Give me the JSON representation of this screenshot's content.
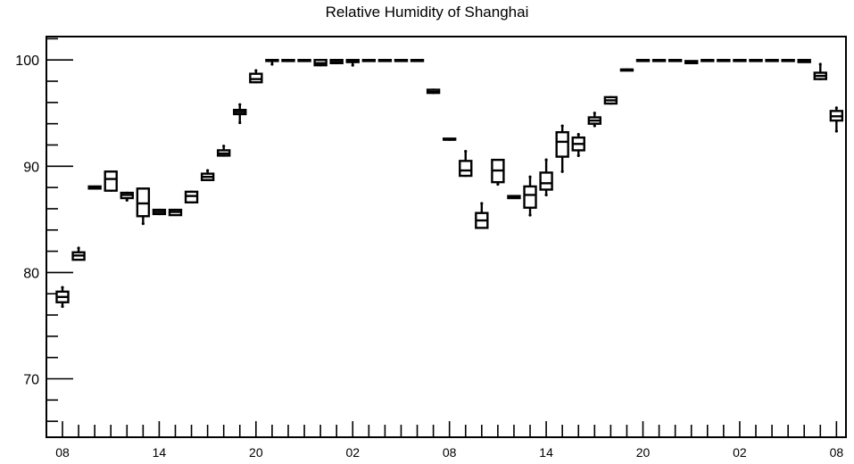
{
  "chart_data": {
    "type": "box",
    "title": "Relative Humidity of Shanghai",
    "xlabel": "",
    "ylabel": "",
    "ylim": [
      64.5,
      102.2
    ],
    "y_ticks": [
      70,
      80,
      90,
      100
    ],
    "x_tick_labels": [
      "08",
      "14",
      "20",
      "02",
      "08",
      "14",
      "20",
      "02",
      "08"
    ],
    "hours": 49,
    "grid": false,
    "legend": "none",
    "boxes": [
      {
        "hour": 0,
        "min": 76.8,
        "q1": 77.2,
        "median": 77.7,
        "q3": 78.2,
        "max": 78.6
      },
      {
        "hour": 1,
        "min": 81.2,
        "q1": 81.2,
        "median": 81.6,
        "q3": 81.9,
        "max": 82.3
      },
      {
        "hour": 2,
        "min": 87.9,
        "q1": 87.9,
        "median": 88.0,
        "q3": 88.1,
        "max": 88.1
      },
      {
        "hour": 3,
        "min": 87.6,
        "q1": 87.7,
        "median": 88.8,
        "q3": 89.5,
        "max": 89.5
      },
      {
        "hour": 4,
        "min": 86.8,
        "q1": 87.0,
        "median": 87.3,
        "q3": 87.5,
        "max": 87.6
      },
      {
        "hour": 5,
        "min": 84.6,
        "q1": 85.3,
        "median": 86.5,
        "q3": 87.9,
        "max": 87.9
      },
      {
        "hour": 6,
        "min": 85.4,
        "q1": 85.5,
        "median": 85.7,
        "q3": 85.9,
        "max": 86.0
      },
      {
        "hour": 7,
        "min": 85.4,
        "q1": 85.4,
        "median": 85.7,
        "q3": 85.9,
        "max": 86.0
      },
      {
        "hour": 8,
        "min": 86.5,
        "q1": 86.6,
        "median": 87.2,
        "q3": 87.6,
        "max": 87.7
      },
      {
        "hour": 9,
        "min": 88.6,
        "q1": 88.7,
        "median": 89.0,
        "q3": 89.3,
        "max": 89.6
      },
      {
        "hour": 10,
        "min": 90.9,
        "q1": 91.0,
        "median": 91.2,
        "q3": 91.5,
        "max": 91.9
      },
      {
        "hour": 11,
        "min": 94.1,
        "q1": 94.9,
        "median": 95.1,
        "q3": 95.3,
        "max": 95.8
      },
      {
        "hour": 12,
        "min": 97.8,
        "q1": 97.9,
        "median": 98.2,
        "q3": 98.7,
        "max": 99.0
      },
      {
        "hour": 13,
        "min": 99.6,
        "q1": 99.9,
        "median": 100.0,
        "q3": 100.0,
        "max": 100.0
      },
      {
        "hour": 14,
        "min": 100.0,
        "q1": 100.0,
        "median": 100.0,
        "q3": 100.0,
        "max": 100.0
      },
      {
        "hour": 15,
        "min": 100.0,
        "q1": 100.0,
        "median": 100.0,
        "q3": 100.0,
        "max": 100.0
      },
      {
        "hour": 16,
        "min": 99.4,
        "q1": 99.5,
        "median": 99.7,
        "q3": 100.0,
        "max": 100.0
      },
      {
        "hour": 17,
        "min": 99.6,
        "q1": 99.7,
        "median": 99.8,
        "q3": 100.0,
        "max": 100.0
      },
      {
        "hour": 18,
        "min": 99.5,
        "q1": 99.8,
        "median": 99.9,
        "q3": 100.0,
        "max": 100.0
      },
      {
        "hour": 19,
        "min": 100.0,
        "q1": 100.0,
        "median": 100.0,
        "q3": 100.0,
        "max": 100.0
      },
      {
        "hour": 20,
        "min": 100.0,
        "q1": 100.0,
        "median": 100.0,
        "q3": 100.0,
        "max": 100.0
      },
      {
        "hour": 21,
        "min": 100.0,
        "q1": 100.0,
        "median": 100.0,
        "q3": 100.0,
        "max": 100.0
      },
      {
        "hour": 22,
        "min": 100.0,
        "q1": 100.0,
        "median": 100.0,
        "q3": 100.0,
        "max": 100.0
      },
      {
        "hour": 23,
        "min": 96.8,
        "q1": 96.9,
        "median": 97.0,
        "q3": 97.2,
        "max": 97.3
      },
      {
        "hour": 24,
        "min": 92.4,
        "q1": 92.5,
        "median": 92.5,
        "q3": 92.6,
        "max": 92.6
      },
      {
        "hour": 25,
        "min": 89.0,
        "q1": 89.1,
        "median": 89.6,
        "q3": 90.5,
        "max": 91.4
      },
      {
        "hour": 26,
        "min": 84.2,
        "q1": 84.2,
        "median": 84.9,
        "q3": 85.6,
        "max": 86.5
      },
      {
        "hour": 27,
        "min": 88.3,
        "q1": 88.5,
        "median": 89.6,
        "q3": 90.6,
        "max": 90.6
      },
      {
        "hour": 28,
        "min": 87.0,
        "q1": 87.0,
        "median": 87.1,
        "q3": 87.2,
        "max": 87.2
      },
      {
        "hour": 29,
        "min": 85.4,
        "q1": 86.1,
        "median": 87.3,
        "q3": 88.1,
        "max": 89.0
      },
      {
        "hour": 30,
        "min": 87.3,
        "q1": 87.8,
        "median": 88.4,
        "q3": 89.4,
        "max": 90.6
      },
      {
        "hour": 31,
        "min": 89.5,
        "q1": 90.9,
        "median": 92.3,
        "q3": 93.2,
        "max": 93.8
      },
      {
        "hour": 32,
        "min": 91.0,
        "q1": 91.5,
        "median": 92.1,
        "q3": 92.7,
        "max": 93.0
      },
      {
        "hour": 33,
        "min": 93.8,
        "q1": 94.0,
        "median": 94.3,
        "q3": 94.6,
        "max": 95.0
      },
      {
        "hour": 34,
        "min": 95.8,
        "q1": 95.9,
        "median": 96.2,
        "q3": 96.5,
        "max": 96.6
      },
      {
        "hour": 35,
        "min": 99.0,
        "q1": 99.0,
        "median": 99.1,
        "q3": 99.1,
        "max": 99.2
      },
      {
        "hour": 36,
        "min": 100.0,
        "q1": 100.0,
        "median": 100.0,
        "q3": 100.0,
        "max": 100.0
      },
      {
        "hour": 37,
        "min": 100.0,
        "q1": 100.0,
        "median": 100.0,
        "q3": 100.0,
        "max": 100.0
      },
      {
        "hour": 38,
        "min": 100.0,
        "q1": 100.0,
        "median": 100.0,
        "q3": 100.0,
        "max": 100.0
      },
      {
        "hour": 39,
        "min": 99.7,
        "q1": 99.7,
        "median": 99.8,
        "q3": 99.9,
        "max": 99.9
      },
      {
        "hour": 40,
        "min": 100.0,
        "q1": 100.0,
        "median": 100.0,
        "q3": 100.0,
        "max": 100.0
      },
      {
        "hour": 41,
        "min": 100.0,
        "q1": 100.0,
        "median": 100.0,
        "q3": 100.0,
        "max": 100.0
      },
      {
        "hour": 42,
        "min": 100.0,
        "q1": 100.0,
        "median": 100.0,
        "q3": 100.0,
        "max": 100.0
      },
      {
        "hour": 43,
        "min": 100.0,
        "q1": 100.0,
        "median": 100.0,
        "q3": 100.0,
        "max": 100.0
      },
      {
        "hour": 44,
        "min": 100.0,
        "q1": 100.0,
        "median": 100.0,
        "q3": 100.0,
        "max": 100.0
      },
      {
        "hour": 45,
        "min": 100.0,
        "q1": 100.0,
        "median": 100.0,
        "q3": 100.0,
        "max": 100.0
      },
      {
        "hour": 46,
        "min": 99.8,
        "q1": 99.8,
        "median": 99.9,
        "q3": 100.0,
        "max": 100.0
      },
      {
        "hour": 47,
        "min": 98.1,
        "q1": 98.2,
        "median": 98.5,
        "q3": 98.8,
        "max": 99.6
      },
      {
        "hour": 48,
        "min": 93.3,
        "q1": 94.3,
        "median": 94.7,
        "q3": 95.2,
        "max": 95.5
      }
    ]
  }
}
